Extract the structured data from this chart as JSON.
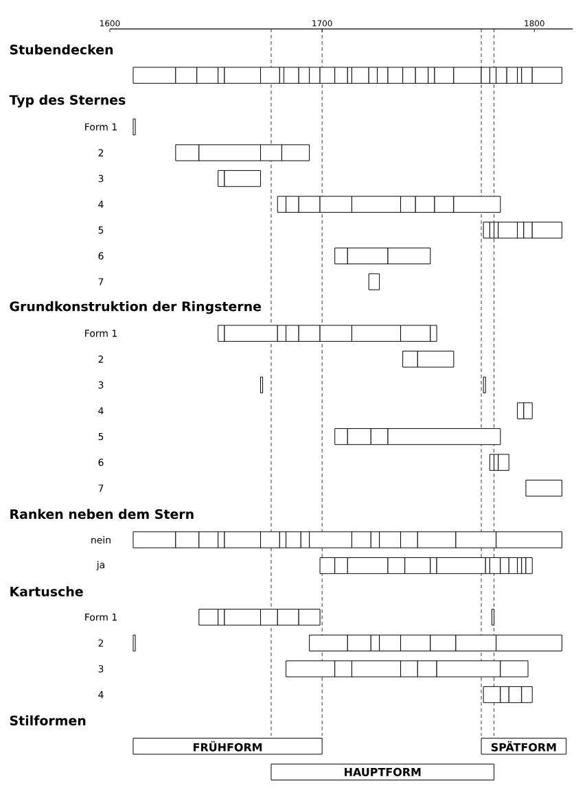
{
  "chart_data": {
    "type": "bar",
    "orientation": "horizontal",
    "categories": [
      null,
      null,
      null,
      "Form 1",
      "2",
      "3",
      "4",
      "5",
      "6",
      "7",
      null,
      "Form 1",
      "2",
      "3",
      "4",
      "5",
      "6",
      "7",
      null,
      "nein",
      "ja",
      null,
      "Form 1",
      "2",
      "3",
      "4",
      null,
      null,
      null
    ],
    "annotations": [
      "Stubendecken",
      "Typ des Sternes",
      "Grundkonstruktion der Ringsterne",
      "Ranken neben dem Stern",
      "Kartusche",
      "Stilformen"
    ],
    "xlim": [
      1600,
      1818
    ],
    "xticks": [
      1600,
      1700,
      1800
    ],
    "ref_lines": [
      {
        "axis": "x",
        "value": 1676,
        "line_style": "dashed"
      },
      {
        "axis": "x",
        "value": 1700,
        "line_style": "dashed"
      },
      {
        "axis": "x",
        "value": 1775,
        "line_style": "dashed"
      },
      {
        "axis": "x",
        "value": 1781,
        "line_style": "dashed"
      }
    ],
    "series": [
      {
        "base": [
          null,
          1611,
          null,
          1611,
          1631,
          1651,
          1679,
          1776,
          1706,
          1722,
          null,
          1651,
          1738,
          1671,
          1792,
          1706,
          1779,
          1796,
          null,
          1611,
          1699,
          null,
          1642,
          1611,
          1683,
          1776,
          null,
          null,
          null
        ],
        "values": [
          null,
          20,
          null,
          1,
          11,
          3,
          4,
          3,
          6,
          5,
          null,
          3,
          7,
          1,
          3,
          6,
          2,
          17,
          null,
          20,
          7,
          null,
          9,
          1,
          23,
          8,
          null,
          null,
          null
        ]
      },
      {
        "base": [
          null,
          1631,
          null,
          null,
          1642,
          1654,
          1683,
          1779,
          1712,
          null,
          null,
          1654,
          1745,
          1776,
          1795,
          1712,
          1781,
          null,
          null,
          1631,
          1706,
          null,
          1651,
          1694,
          1706,
          1784,
          null,
          null,
          null
        ],
        "values": [
          null,
          10,
          null,
          null,
          29,
          17,
          6,
          2,
          19,
          null,
          null,
          25,
          17,
          1,
          4,
          11,
          2,
          null,
          null,
          11,
          6,
          null,
          3,
          18,
          8,
          4,
          null,
          null,
          null
        ]
      },
      {
        "base": [
          null,
          1641,
          null,
          null,
          1671,
          null,
          1689,
          1781,
          1731,
          null,
          null,
          1679,
          null,
          null,
          null,
          1723,
          1783,
          null,
          null,
          1642,
          1712,
          null,
          1654,
          1712,
          1714,
          1788,
          null,
          null,
          null
        ],
        "values": [
          null,
          10,
          null,
          null,
          10,
          null,
          10,
          2,
          20,
          null,
          null,
          4,
          null,
          null,
          null,
          8,
          5,
          null,
          null,
          9,
          19,
          null,
          17,
          11,
          23,
          6,
          null,
          null,
          null
        ]
      },
      {
        "base": [
          null,
          1651,
          null,
          null,
          1681,
          null,
          1699,
          1783,
          null,
          null,
          null,
          1683,
          null,
          null,
          null,
          1731,
          null,
          null,
          null,
          1651,
          1731,
          null,
          1671,
          1723,
          1737,
          1794,
          null,
          null,
          null
        ],
        "values": [
          null,
          3,
          null,
          null,
          13,
          null,
          15,
          9,
          null,
          null,
          null,
          6,
          null,
          null,
          null,
          53,
          null,
          null,
          null,
          3,
          8,
          null,
          8,
          4,
          8,
          5,
          null,
          null,
          null
        ]
      },
      {
        "base": [
          null,
          1654,
          null,
          null,
          null,
          null,
          1714,
          1792,
          null,
          null,
          null,
          1689,
          null,
          null,
          null,
          null,
          null,
          null,
          null,
          1654,
          1739,
          null,
          1679,
          1727,
          1745,
          null,
          null,
          null,
          null
        ],
        "values": [
          null,
          17,
          null,
          null,
          null,
          null,
          23,
          3,
          null,
          null,
          null,
          10,
          null,
          null,
          null,
          null,
          null,
          null,
          null,
          17,
          12,
          null,
          10,
          10,
          9,
          null,
          null,
          null,
          null
        ]
      },
      {
        "base": [
          null,
          1671,
          null,
          null,
          null,
          null,
          1737,
          1795,
          null,
          null,
          null,
          1699,
          null,
          null,
          null,
          null,
          null,
          null,
          null,
          1671,
          1751,
          null,
          1689,
          1737,
          1754,
          null,
          null,
          null,
          null
        ],
        "values": [
          null,
          9,
          null,
          null,
          null,
          null,
          7,
          4,
          null,
          null,
          null,
          15,
          null,
          null,
          null,
          null,
          null,
          null,
          null,
          9,
          3,
          null,
          10,
          14,
          30,
          null,
          null,
          null,
          null
        ]
      },
      {
        "base": [
          null,
          1680,
          null,
          null,
          null,
          null,
          1744,
          1799,
          null,
          null,
          null,
          1714,
          null,
          null,
          null,
          null,
          null,
          null,
          null,
          1680,
          1754,
          null,
          1780,
          1751,
          1784,
          null,
          null,
          null,
          null
        ],
        "values": [
          null,
          2,
          null,
          null,
          null,
          null,
          9,
          14,
          null,
          null,
          null,
          23,
          null,
          null,
          null,
          null,
          null,
          null,
          null,
          3,
          23,
          null,
          1,
          12,
          13,
          null,
          null,
          null,
          null
        ]
      },
      {
        "base": [
          null,
          1682,
          null,
          null,
          null,
          null,
          1753,
          null,
          null,
          null,
          null,
          1737,
          null,
          null,
          null,
          null,
          null,
          null,
          null,
          1683,
          1777,
          null,
          null,
          1763,
          null,
          null,
          null,
          null,
          null
        ],
        "values": [
          null,
          7,
          null,
          null,
          null,
          null,
          9,
          null,
          null,
          null,
          null,
          14,
          null,
          null,
          null,
          null,
          null,
          null,
          null,
          7,
          2,
          null,
          null,
          19,
          null,
          null,
          null,
          null,
          null
        ]
      },
      {
        "base": [
          null,
          1689,
          null,
          null,
          null,
          null,
          1762,
          null,
          null,
          null,
          null,
          1751,
          null,
          null,
          null,
          null,
          null,
          null,
          null,
          1690,
          1779,
          null,
          null,
          1782,
          null,
          null,
          null,
          null,
          null
        ],
        "values": [
          null,
          5,
          null,
          null,
          null,
          null,
          22,
          null,
          null,
          null,
          null,
          3,
          null,
          null,
          null,
          null,
          null,
          null,
          null,
          4,
          5,
          null,
          null,
          31,
          null,
          null,
          null,
          null,
          null
        ]
      },
      {
        "base": [
          null,
          1694,
          null,
          null,
          null,
          null,
          null,
          null,
          null,
          null,
          null,
          null,
          null,
          null,
          null,
          null,
          null,
          null,
          null,
          1694,
          1784,
          null,
          null,
          null,
          null,
          null,
          null,
          null,
          null
        ],
        "values": [
          null,
          5,
          null,
          null,
          null,
          null,
          null,
          null,
          null,
          null,
          null,
          null,
          null,
          null,
          null,
          null,
          null,
          null,
          null,
          20,
          4,
          null,
          null,
          null,
          null,
          null,
          null,
          null,
          null
        ]
      },
      {
        "base": [
          null,
          1699,
          null,
          null,
          null,
          null,
          null,
          null,
          null,
          null,
          null,
          null,
          null,
          null,
          null,
          null,
          null,
          null,
          null,
          1714,
          1788,
          null,
          null,
          null,
          null,
          null,
          null,
          null,
          null
        ],
        "values": [
          null,
          7,
          null,
          null,
          null,
          null,
          null,
          null,
          null,
          null,
          null,
          null,
          null,
          null,
          null,
          null,
          null,
          null,
          null,
          9,
          4,
          null,
          null,
          null,
          null,
          null,
          null,
          null,
          null
        ]
      },
      {
        "base": [
          null,
          1706,
          null,
          null,
          null,
          null,
          null,
          null,
          null,
          null,
          null,
          null,
          null,
          null,
          null,
          null,
          null,
          null,
          null,
          1723,
          1792,
          null,
          null,
          null,
          null,
          null,
          null,
          null,
          null
        ],
        "values": [
          null,
          6,
          null,
          null,
          null,
          null,
          null,
          null,
          null,
          null,
          null,
          null,
          null,
          null,
          null,
          null,
          null,
          null,
          null,
          4,
          2,
          null,
          null,
          null,
          null,
          null,
          null,
          null,
          null
        ]
      },
      {
        "base": [
          null,
          1712,
          null,
          null,
          null,
          null,
          null,
          null,
          null,
          null,
          null,
          null,
          null,
          null,
          null,
          null,
          null,
          null,
          null,
          1727,
          1794,
          null,
          null,
          null,
          null,
          null,
          null,
          null,
          null
        ],
        "values": [
          null,
          2,
          null,
          null,
          null,
          null,
          null,
          null,
          null,
          null,
          null,
          null,
          null,
          null,
          null,
          null,
          null,
          null,
          null,
          10,
          2,
          null,
          null,
          null,
          null,
          null,
          null,
          null,
          null
        ]
      },
      {
        "base": [
          null,
          1714,
          null,
          null,
          null,
          null,
          null,
          null,
          null,
          null,
          null,
          null,
          null,
          null,
          null,
          null,
          null,
          null,
          null,
          1737,
          1796,
          null,
          null,
          null,
          null,
          null,
          null,
          null,
          null
        ],
        "values": [
          null,
          8,
          null,
          null,
          null,
          null,
          null,
          null,
          null,
          null,
          null,
          null,
          null,
          null,
          null,
          null,
          null,
          null,
          null,
          8,
          3,
          null,
          null,
          null,
          null,
          null,
          null,
          null,
          null
        ]
      },
      {
        "base": [
          null,
          1722,
          null,
          null,
          null,
          null,
          null,
          null,
          null,
          null,
          null,
          null,
          null,
          null,
          null,
          null,
          null,
          null,
          null,
          1745,
          null,
          null,
          null,
          null,
          null,
          null,
          null,
          null,
          null
        ],
        "values": [
          null,
          4,
          null,
          null,
          null,
          null,
          null,
          null,
          null,
          null,
          null,
          null,
          null,
          null,
          null,
          null,
          null,
          null,
          null,
          18,
          null,
          null,
          null,
          null,
          null,
          null,
          null,
          null,
          null
        ]
      },
      {
        "base": [
          null,
          1726,
          null,
          null,
          null,
          null,
          null,
          null,
          null,
          null,
          null,
          null,
          null,
          null,
          null,
          null,
          null,
          null,
          null,
          1763,
          null,
          null,
          null,
          null,
          null,
          null,
          null,
          null,
          null
        ],
        "values": [
          null,
          5,
          null,
          null,
          null,
          null,
          null,
          null,
          null,
          null,
          null,
          null,
          null,
          null,
          null,
          null,
          null,
          null,
          null,
          19,
          null,
          null,
          null,
          null,
          null,
          null,
          null,
          null,
          null
        ]
      },
      {
        "base": [
          null,
          1731,
          null,
          null,
          null,
          null,
          null,
          null,
          null,
          null,
          null,
          null,
          null,
          null,
          null,
          null,
          null,
          null,
          null,
          1782,
          null,
          null,
          null,
          null,
          null,
          null,
          null,
          null,
          null
        ],
        "values": [
          null,
          7,
          null,
          null,
          null,
          null,
          null,
          null,
          null,
          null,
          null,
          null,
          null,
          null,
          null,
          null,
          null,
          null,
          null,
          31,
          null,
          null,
          null,
          null,
          null,
          null,
          null,
          null,
          null
        ]
      },
      {
        "base": [
          null,
          1738,
          null,
          null,
          null,
          null,
          null,
          null,
          null,
          null,
          null,
          null,
          null,
          null,
          null,
          null,
          null,
          null,
          null,
          null,
          null,
          null,
          null,
          null,
          null,
          null,
          null,
          null,
          null
        ],
        "values": [
          null,
          6,
          null,
          null,
          null,
          null,
          null,
          null,
          null,
          null,
          null,
          null,
          null,
          null,
          null,
          null,
          null,
          null,
          null,
          null,
          null,
          null,
          null,
          null,
          null,
          null,
          null,
          null,
          null
        ]
      },
      {
        "base": [
          null,
          1744,
          null,
          null,
          null,
          null,
          null,
          null,
          null,
          null,
          null,
          null,
          null,
          null,
          null,
          null,
          null,
          null,
          null,
          null,
          null,
          null,
          null,
          null,
          null,
          null,
          null,
          null,
          null
        ],
        "values": [
          null,
          6,
          null,
          null,
          null,
          null,
          null,
          null,
          null,
          null,
          null,
          null,
          null,
          null,
          null,
          null,
          null,
          null,
          null,
          null,
          null,
          null,
          null,
          null,
          null,
          null,
          null,
          null,
          null
        ]
      },
      {
        "base": [
          null,
          1750,
          null,
          null,
          null,
          null,
          null,
          null,
          null,
          null,
          null,
          null,
          null,
          null,
          null,
          null,
          null,
          null,
          null,
          null,
          null,
          null,
          null,
          null,
          null,
          null,
          null,
          null,
          null
        ],
        "values": [
          null,
          3,
          null,
          null,
          null,
          null,
          null,
          null,
          null,
          null,
          null,
          null,
          null,
          null,
          null,
          null,
          null,
          null,
          null,
          null,
          null,
          null,
          null,
          null,
          null,
          null,
          null,
          null,
          null
        ]
      },
      {
        "base": [
          null,
          1753,
          null,
          null,
          null,
          null,
          null,
          null,
          null,
          null,
          null,
          null,
          null,
          null,
          null,
          null,
          null,
          null,
          null,
          null,
          null,
          null,
          null,
          null,
          null,
          null,
          null,
          null,
          null
        ],
        "values": [
          null,
          9,
          null,
          null,
          null,
          null,
          null,
          null,
          null,
          null,
          null,
          null,
          null,
          null,
          null,
          null,
          null,
          null,
          null,
          null,
          null,
          null,
          null,
          null,
          null,
          null,
          null,
          null,
          null
        ]
      },
      {
        "base": [
          null,
          1762,
          null,
          null,
          null,
          null,
          null,
          null,
          null,
          null,
          null,
          null,
          null,
          null,
          null,
          null,
          null,
          null,
          null,
          null,
          null,
          null,
          null,
          null,
          null,
          null,
          null,
          null,
          null
        ],
        "values": [
          null,
          13,
          null,
          null,
          null,
          null,
          null,
          null,
          null,
          null,
          null,
          null,
          null,
          null,
          null,
          null,
          null,
          null,
          null,
          null,
          null,
          null,
          null,
          null,
          null,
          null,
          null,
          null,
          null
        ]
      },
      {
        "base": [
          null,
          1775,
          null,
          null,
          null,
          null,
          null,
          null,
          null,
          null,
          null,
          null,
          null,
          null,
          null,
          null,
          null,
          null,
          null,
          null,
          null,
          null,
          null,
          null,
          null,
          null,
          null,
          null,
          null
        ],
        "values": [
          null,
          4,
          null,
          null,
          null,
          null,
          null,
          null,
          null,
          null,
          null,
          null,
          null,
          null,
          null,
          null,
          null,
          null,
          null,
          null,
          null,
          null,
          null,
          null,
          null,
          null,
          null,
          null,
          null
        ]
      },
      {
        "base": [
          null,
          1779,
          null,
          null,
          null,
          null,
          null,
          null,
          null,
          null,
          null,
          null,
          null,
          null,
          null,
          null,
          null,
          null,
          null,
          null,
          null,
          null,
          null,
          null,
          null,
          null,
          null,
          null,
          null
        ],
        "values": [
          null,
          3,
          null,
          null,
          null,
          null,
          null,
          null,
          null,
          null,
          null,
          null,
          null,
          null,
          null,
          null,
          null,
          null,
          null,
          null,
          null,
          null,
          null,
          null,
          null,
          null,
          null,
          null,
          null
        ]
      },
      {
        "base": [
          null,
          1782,
          null,
          null,
          null,
          null,
          null,
          null,
          null,
          null,
          null,
          null,
          null,
          null,
          null,
          null,
          null,
          null,
          null,
          null,
          null,
          null,
          null,
          null,
          null,
          null,
          null,
          null,
          null
        ],
        "values": [
          null,
          5,
          null,
          null,
          null,
          null,
          null,
          null,
          null,
          null,
          null,
          null,
          null,
          null,
          null,
          null,
          null,
          null,
          null,
          null,
          null,
          null,
          null,
          null,
          null,
          null,
          null,
          null,
          null
        ]
      },
      {
        "base": [
          null,
          1787,
          null,
          null,
          null,
          null,
          null,
          null,
          null,
          null,
          null,
          null,
          null,
          null,
          null,
          null,
          null,
          null,
          null,
          null,
          null,
          null,
          null,
          null,
          null,
          null,
          null,
          null,
          null
        ],
        "values": [
          null,
          5,
          null,
          null,
          null,
          null,
          null,
          null,
          null,
          null,
          null,
          null,
          null,
          null,
          null,
          null,
          null,
          null,
          null,
          null,
          null,
          null,
          null,
          null,
          null,
          null,
          null,
          null,
          null
        ]
      },
      {
        "base": [
          null,
          1792,
          null,
          null,
          null,
          null,
          null,
          null,
          null,
          null,
          null,
          null,
          null,
          null,
          null,
          null,
          null,
          null,
          null,
          null,
          null,
          null,
          null,
          null,
          null,
          null,
          null,
          null,
          null
        ],
        "values": [
          null,
          2,
          null,
          null,
          null,
          null,
          null,
          null,
          null,
          null,
          null,
          null,
          null,
          null,
          null,
          null,
          null,
          null,
          null,
          null,
          null,
          null,
          null,
          null,
          null,
          null,
          null,
          null,
          null
        ]
      },
      {
        "base": [
          null,
          1794,
          null,
          null,
          null,
          null,
          null,
          null,
          null,
          null,
          null,
          null,
          null,
          null,
          null,
          null,
          null,
          null,
          null,
          null,
          null,
          null,
          null,
          null,
          null,
          null,
          null,
          null,
          null
        ],
        "values": [
          null,
          5,
          null,
          null,
          null,
          null,
          null,
          null,
          null,
          null,
          null,
          null,
          null,
          null,
          null,
          null,
          null,
          null,
          null,
          null,
          null,
          null,
          null,
          null,
          null,
          null,
          null,
          null,
          null
        ]
      },
      {
        "base": [
          null,
          1799,
          null,
          null,
          null,
          null,
          null,
          null,
          null,
          null,
          null,
          null,
          null,
          null,
          null,
          null,
          null,
          null,
          null,
          null,
          null,
          null,
          null,
          null,
          null,
          null,
          null,
          null,
          null
        ],
        "values": [
          null,
          14,
          null,
          null,
          null,
          null,
          null,
          null,
          null,
          null,
          null,
          null,
          null,
          null,
          null,
          null,
          null,
          null,
          null,
          null,
          null,
          null,
          null,
          null,
          null,
          null,
          null,
          null,
          null
        ]
      },
      {
        "base": [
          null,
          null,
          null,
          null,
          null,
          null,
          null,
          null,
          null,
          null,
          null,
          null,
          null,
          null,
          null,
          null,
          null,
          null,
          null,
          null,
          null,
          null,
          null,
          null,
          null,
          null,
          null,
          1611,
          1676
        ],
        "values": [
          null,
          null,
          null,
          null,
          null,
          null,
          null,
          null,
          null,
          null,
          null,
          null,
          null,
          null,
          null,
          null,
          null,
          null,
          null,
          null,
          null,
          null,
          null,
          null,
          null,
          null,
          null,
          89,
          105
        ],
        "value_labels": [
          null,
          null,
          null,
          null,
          null,
          null,
          null,
          null,
          null,
          null,
          null,
          null,
          null,
          null,
          null,
          null,
          null,
          null,
          null,
          null,
          null,
          null,
          null,
          null,
          null,
          null,
          null,
          "FRÜHFORM",
          "HAUPTFORM"
        ]
      },
      {
        "base": [
          null,
          null,
          null,
          null,
          null,
          null,
          null,
          null,
          null,
          null,
          null,
          null,
          null,
          null,
          null,
          null,
          null,
          null,
          null,
          null,
          null,
          null,
          null,
          null,
          null,
          null,
          null,
          1775,
          null
        ],
        "values": [
          null,
          null,
          null,
          null,
          null,
          null,
          null,
          null,
          null,
          null,
          null,
          null,
          null,
          null,
          null,
          null,
          null,
          null,
          null,
          null,
          null,
          null,
          null,
          null,
          null,
          null,
          null,
          40,
          null
        ],
        "value_labels": [
          null,
          null,
          null,
          null,
          null,
          null,
          null,
          null,
          null,
          null,
          null,
          null,
          null,
          null,
          null,
          null,
          null,
          null,
          null,
          null,
          null,
          null,
          null,
          null,
          null,
          null,
          null,
          "SPÄTFORM",
          null
        ]
      }
    ]
  }
}
